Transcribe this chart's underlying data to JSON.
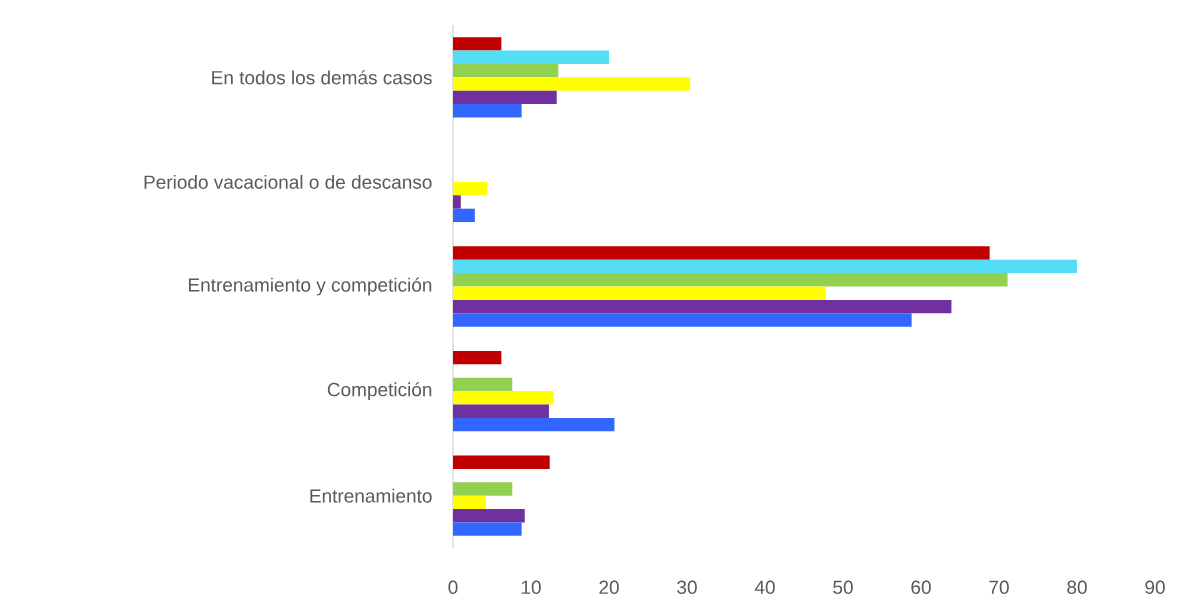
{
  "chart_data": {
    "type": "bar",
    "orientation": "horizontal",
    "categories": [
      "En todos los demás casos",
      "Periodo vacacional o de descanso",
      "Entrenamiento y competición",
      "Competición",
      "Entrenamiento"
    ],
    "xlim": [
      0,
      90
    ],
    "xticks": [
      0,
      10,
      20,
      30,
      40,
      50,
      60,
      70,
      80,
      90
    ],
    "series": [
      {
        "color": "#c00000",
        "values": [
          6.2,
          null,
          68.8,
          6.2,
          12.4
        ]
      },
      {
        "color": "#55ddf5",
        "values": [
          20.0,
          null,
          80.0,
          null,
          null
        ]
      },
      {
        "color": "#92d050",
        "values": [
          13.5,
          null,
          71.1,
          7.6,
          7.6
        ]
      },
      {
        "color": "#ffff00",
        "values": [
          30.4,
          4.4,
          47.8,
          12.9,
          4.2
        ]
      },
      {
        "color": "#7030a0",
        "values": [
          13.3,
          1.0,
          63.9,
          12.3,
          9.2
        ]
      },
      {
        "color": "#3366ff",
        "values": [
          8.8,
          2.8,
          58.8,
          20.7,
          8.8
        ]
      }
    ]
  }
}
